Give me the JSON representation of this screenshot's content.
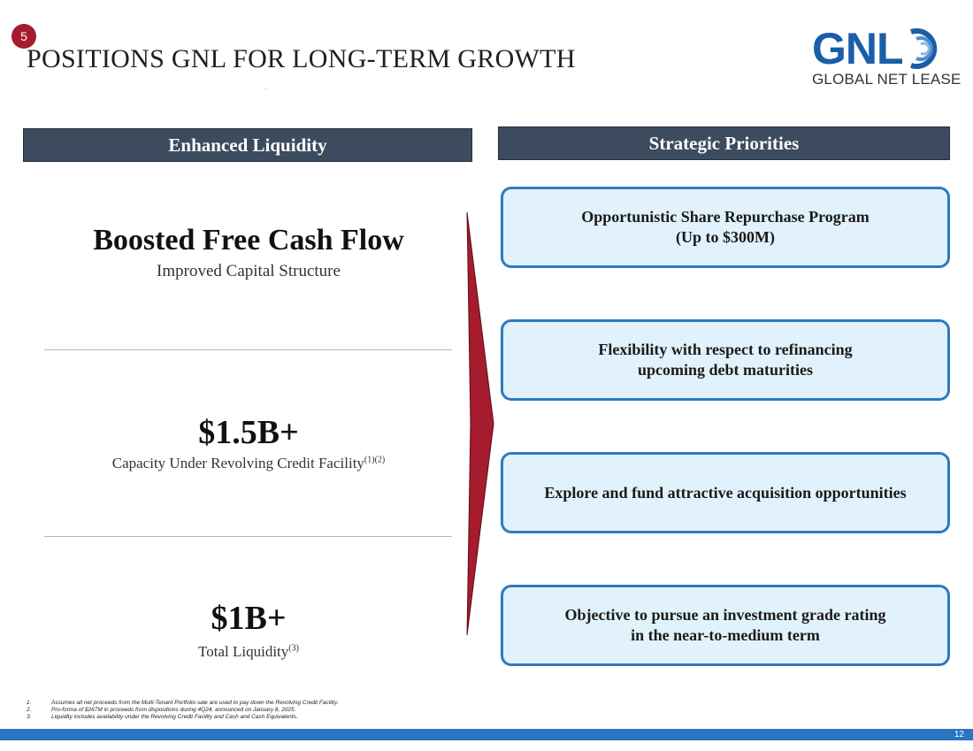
{
  "slide": {
    "badge_number": "5",
    "title": "POSITIONS GNL FOR LONG-TERM GROWTH",
    "page_number": "12"
  },
  "logo": {
    "word": "GNL",
    "subtitle": "GLOBAL NET LEASE",
    "brand_color": "#1a5ea8"
  },
  "left_panel": {
    "header": "Enhanced Liquidity",
    "items": [
      {
        "headline": "Boosted Free Cash Flow",
        "subtext": "Improved Capital Structure",
        "footnote_refs": ""
      },
      {
        "headline": "$1.5B+",
        "subtext": "Capacity Under Revolving Credit Facility",
        "footnote_refs": "(1)(2)"
      },
      {
        "headline": "$1B+",
        "subtext": "Total Liquidity",
        "footnote_refs": "(3)"
      }
    ]
  },
  "right_panel": {
    "header": "Strategic Priorities",
    "priorities": [
      "Opportunistic Share Repurchase Program\n(Up to $300M)",
      "Flexibility with respect to refinancing\nupcoming debt maturities",
      "Explore and fund attractive acquisition opportunities",
      "Objective to pursue an investment grade rating\nin the near-to-medium term"
    ]
  },
  "footnotes": [
    {
      "num": "1.",
      "text": "Assumes all net proceeds from the Multi-Tenant Portfolio sale are used to pay down the Revolving Credit Facility."
    },
    {
      "num": "2.",
      "text": "Pro-forma of $267M in proceeds from dispositions during 4Q24, announced on January 8, 2025."
    },
    {
      "num": "3.",
      "text": "Liquidity includes availability under the Revolving Credit Facility and Cash and Cash Equivalents."
    }
  ],
  "colors": {
    "accent_red": "#a51c2e",
    "header_bg": "#3d4b5e",
    "card_border": "#2b7bbf",
    "card_bg": "#e2f2fc",
    "footer_bar": "#2a74c0"
  }
}
